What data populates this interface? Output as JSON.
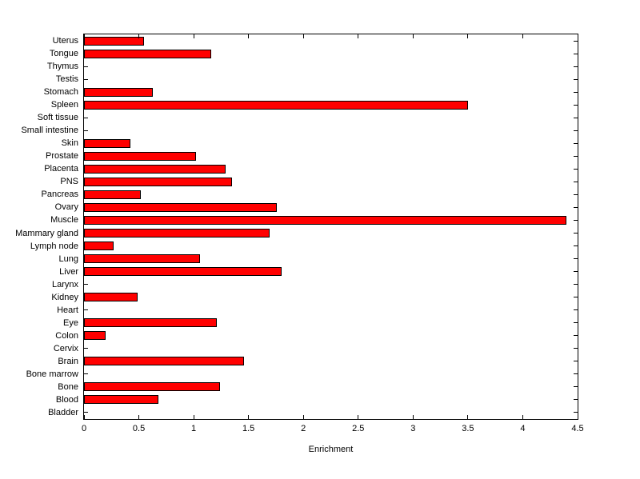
{
  "chart_data": {
    "type": "bar",
    "orientation": "horizontal",
    "title": "",
    "xlabel": "Enrichment",
    "ylabel": "",
    "xlim": [
      0,
      4.5
    ],
    "xticks": [
      0,
      0.5,
      1,
      1.5,
      2,
      2.5,
      3,
      3.5,
      4,
      4.5
    ],
    "xtick_labels": [
      "0",
      "0.5",
      "1",
      "1.5",
      "2",
      "2.5",
      "3",
      "3.5",
      "4",
      "4.5"
    ],
    "grid": false,
    "legend": "none",
    "bar_color": "#ff0000",
    "bar_edge_color": "#000000",
    "axis_color": "#000000",
    "background_color": "#ffffff",
    "categories": [
      "Uterus",
      "Tongue",
      "Thymus",
      "Testis",
      "Stomach",
      "Spleen",
      "Soft tissue",
      "Small intestine",
      "Skin",
      "Prostate",
      "Placenta",
      "PNS",
      "Pancreas",
      "Ovary",
      "Muscle",
      "Mammary gland",
      "Lymph node",
      "Lung",
      "Liver",
      "Larynx",
      "Kidney",
      "Heart",
      "Eye",
      "Colon",
      "Cervix",
      "Brain",
      "Bone marrow",
      "Bone",
      "Blood",
      "Bladder"
    ],
    "values": [
      0.55,
      1.16,
      0,
      0,
      0.63,
      3.5,
      0,
      0,
      0.42,
      1.02,
      1.29,
      1.35,
      0.52,
      1.76,
      4.4,
      1.69,
      0.27,
      1.06,
      1.8,
      0,
      0.49,
      0,
      1.21,
      0.2,
      0,
      1.46,
      0,
      1.24,
      0.68,
      0
    ]
  }
}
